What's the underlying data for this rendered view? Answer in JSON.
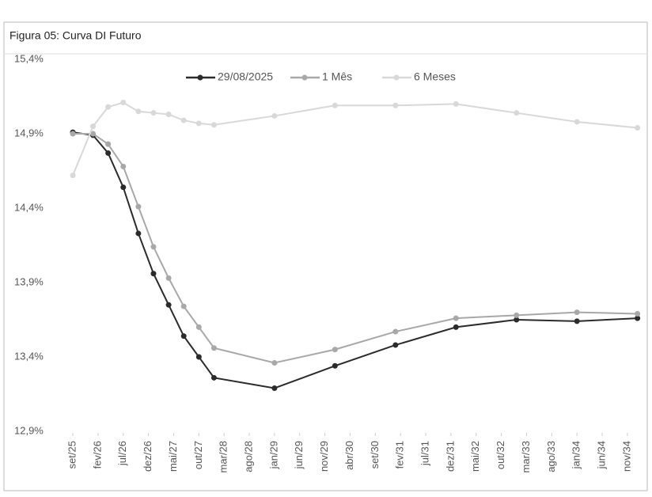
{
  "chart_data": {
    "type": "line",
    "title": "Figura 05: Curva DI Futuro",
    "x": [
      0,
      4,
      7,
      10,
      13,
      16,
      19,
      22,
      25,
      28,
      40,
      52,
      64,
      76,
      88,
      100,
      112
    ],
    "xlim": [
      -1.5,
      113
    ],
    "xticks": [
      {
        "value": 0,
        "label": "set/25"
      },
      {
        "value": 5,
        "label": "fev/26"
      },
      {
        "value": 10,
        "label": "jul/26"
      },
      {
        "value": 15,
        "label": "dez/26"
      },
      {
        "value": 20,
        "label": "mai/27"
      },
      {
        "value": 25,
        "label": "out/27"
      },
      {
        "value": 30,
        "label": "mar/28"
      },
      {
        "value": 35,
        "label": "ago/28"
      },
      {
        "value": 40,
        "label": "jan/29"
      },
      {
        "value": 45,
        "label": "jun/29"
      },
      {
        "value": 50,
        "label": "nov/29"
      },
      {
        "value": 55,
        "label": "abr/30"
      },
      {
        "value": 60,
        "label": "set/30"
      },
      {
        "value": 65,
        "label": "fev/31"
      },
      {
        "value": 70,
        "label": "jul/31"
      },
      {
        "value": 75,
        "label": "dez/31"
      },
      {
        "value": 80,
        "label": "mai/32"
      },
      {
        "value": 85,
        "label": "out/32"
      },
      {
        "value": 90,
        "label": "mar/33"
      },
      {
        "value": 95,
        "label": "ago/33"
      },
      {
        "value": 100,
        "label": "jan/34"
      },
      {
        "value": 105,
        "label": "jun/34"
      },
      {
        "value": 110,
        "label": "nov/34"
      }
    ],
    "ylim": [
      12.9,
      15.4
    ],
    "yticks": [
      {
        "value": 12.9,
        "label": "12,9%"
      },
      {
        "value": 13.4,
        "label": "13,4%"
      },
      {
        "value": 13.9,
        "label": "13,9%"
      },
      {
        "value": 14.4,
        "label": "14,4%"
      },
      {
        "value": 14.9,
        "label": "14,9%"
      },
      {
        "value": 15.4,
        "label": "15,4%"
      }
    ],
    "legend": "top",
    "series": [
      {
        "name": "29/08/2025",
        "color": "#2b2b2b",
        "values": [
          14.91,
          14.89,
          14.77,
          14.54,
          14.23,
          13.96,
          13.75,
          13.54,
          13.4,
          13.26,
          13.19,
          13.34,
          13.48,
          13.6,
          13.65,
          13.64,
          13.66
        ]
      },
      {
        "name": "1 Mês",
        "color": "#a8a8a8",
        "values": [
          14.9,
          14.9,
          14.83,
          14.68,
          14.41,
          14.14,
          13.93,
          13.74,
          13.6,
          13.46,
          13.36,
          13.45,
          13.57,
          13.66,
          13.68,
          13.7,
          13.69
        ]
      },
      {
        "name": "6 Meses",
        "color": "#d8d8d8",
        "values": [
          14.62,
          14.95,
          15.08,
          15.11,
          15.05,
          15.04,
          15.03,
          14.99,
          14.97,
          14.96,
          15.02,
          15.09,
          15.09,
          15.1,
          15.04,
          14.98,
          14.94
        ]
      }
    ]
  }
}
